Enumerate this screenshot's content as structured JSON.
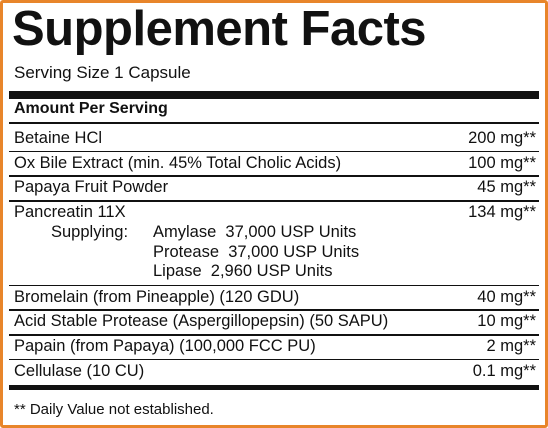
{
  "header": {
    "title": "Supplement Facts",
    "serving_size": "Serving Size 1 Capsule"
  },
  "amount_header": "Amount Per Serving",
  "rows": [
    {
      "name": "Betaine HCl",
      "amount": "200 mg**"
    },
    {
      "name": "Ox Bile Extract (min. 45% Total Cholic Acids)",
      "amount": "100 mg**"
    },
    {
      "name": "Papaya Fruit Powder",
      "amount": "45 mg**"
    },
    {
      "name": "Pancreatin 11X",
      "amount": "134 mg**",
      "details": {
        "label": "Supplying:",
        "items": [
          "Amylase  37,000 USP Units",
          "Protease  37,000 USP Units",
          "Lipase  2,960 USP Units"
        ]
      }
    },
    {
      "name": "Bromelain (from Pineapple) (120 GDU)",
      "amount": "40 mg**"
    },
    {
      "name": "Acid Stable Protease (Aspergillopepsin) (50 SAPU)",
      "amount": "10 mg**"
    },
    {
      "name": "Papain (from Papaya) (100,000 FCC PU)",
      "amount": "2 mg**"
    },
    {
      "name": "Cellulase (10 CU)",
      "amount": "0.1 mg**"
    }
  ],
  "footnote": "** Daily Value not established."
}
